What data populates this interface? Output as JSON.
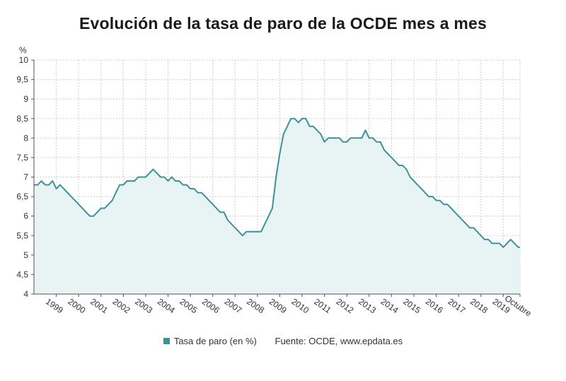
{
  "title": "Evolución de la tasa de paro de la OCDE mes a mes",
  "legend": {
    "series_label": "Tasa de paro (en %)",
    "source": "Fuente: OCDE, www.epdata.es"
  },
  "colors": {
    "line": "#3e9196",
    "fill": "#e8f3f4",
    "grid": "#cfcfcf",
    "axis": "#555555"
  },
  "chart_data": {
    "type": "area",
    "title": "Evolución de la tasa de paro de la OCDE mes a mes",
    "ylabel": "%",
    "xlabel": "",
    "ylim": [
      4,
      10
    ],
    "yticks": [
      4,
      4.5,
      5,
      5.5,
      6,
      6.5,
      7,
      7.5,
      8,
      8.5,
      9,
      9.5,
      10
    ],
    "xticks": [
      "1999",
      "2000",
      "2001",
      "2002",
      "2003",
      "2004",
      "2005",
      "2006",
      "2007",
      "2008",
      "2009",
      "2010",
      "2011",
      "2012",
      "2013",
      "2014",
      "2015",
      "2016",
      "2017",
      "2018",
      "2019",
      "Octubre"
    ],
    "grid": true,
    "legend_position": "bottom",
    "series": [
      {
        "name": "Tasa de paro (en %)",
        "x": [
          "1998-01",
          "1998-03",
          "1998-05",
          "1998-07",
          "1998-09",
          "1998-11",
          "1999-01",
          "1999-03",
          "1999-05",
          "1999-07",
          "1999-09",
          "1999-11",
          "2000-01",
          "2000-03",
          "2000-05",
          "2000-07",
          "2000-09",
          "2000-11",
          "2001-01",
          "2001-03",
          "2001-05",
          "2001-07",
          "2001-09",
          "2001-11",
          "2002-01",
          "2002-03",
          "2002-05",
          "2002-07",
          "2002-09",
          "2002-11",
          "2003-01",
          "2003-03",
          "2003-05",
          "2003-07",
          "2003-09",
          "2003-11",
          "2004-01",
          "2004-03",
          "2004-05",
          "2004-07",
          "2004-09",
          "2004-11",
          "2005-01",
          "2005-03",
          "2005-05",
          "2005-07",
          "2005-09",
          "2005-11",
          "2006-01",
          "2006-03",
          "2006-05",
          "2006-07",
          "2006-09",
          "2006-11",
          "2007-01",
          "2007-03",
          "2007-05",
          "2007-07",
          "2007-09",
          "2007-11",
          "2008-01",
          "2008-03",
          "2008-05",
          "2008-07",
          "2008-09",
          "2008-11",
          "2009-01",
          "2009-03",
          "2009-05",
          "2009-07",
          "2009-09",
          "2009-11",
          "2010-01",
          "2010-03",
          "2010-05",
          "2010-07",
          "2010-09",
          "2010-11",
          "2011-01",
          "2011-03",
          "2011-05",
          "2011-07",
          "2011-09",
          "2011-11",
          "2012-01",
          "2012-03",
          "2012-05",
          "2012-07",
          "2012-09",
          "2012-11",
          "2013-01",
          "2013-03",
          "2013-05",
          "2013-07",
          "2013-09",
          "2013-11",
          "2014-01",
          "2014-03",
          "2014-05",
          "2014-07",
          "2014-09",
          "2014-11",
          "2015-01",
          "2015-03",
          "2015-05",
          "2015-07",
          "2015-09",
          "2015-11",
          "2016-01",
          "2016-03",
          "2016-05",
          "2016-07",
          "2016-09",
          "2016-11",
          "2017-01",
          "2017-03",
          "2017-05",
          "2017-07",
          "2017-09",
          "2017-11",
          "2018-01",
          "2018-03",
          "2018-05",
          "2018-07",
          "2018-09",
          "2018-11",
          "2019-01",
          "2019-03",
          "2019-05",
          "2019-07",
          "2019-09",
          "2019-10"
        ],
        "values": [
          6.8,
          6.8,
          6.9,
          6.8,
          6.8,
          6.9,
          6.7,
          6.8,
          6.7,
          6.6,
          6.5,
          6.4,
          6.3,
          6.2,
          6.1,
          6.0,
          6.0,
          6.1,
          6.2,
          6.2,
          6.3,
          6.4,
          6.6,
          6.8,
          6.8,
          6.9,
          6.9,
          6.9,
          7.0,
          7.0,
          7.0,
          7.1,
          7.2,
          7.1,
          7.0,
          7.0,
          6.9,
          7.0,
          6.9,
          6.9,
          6.8,
          6.8,
          6.7,
          6.7,
          6.6,
          6.6,
          6.5,
          6.4,
          6.3,
          6.2,
          6.1,
          6.1,
          5.9,
          5.8,
          5.7,
          5.6,
          5.5,
          5.6,
          5.6,
          5.6,
          5.6,
          5.6,
          5.8,
          6.0,
          6.2,
          7.0,
          7.6,
          8.1,
          8.3,
          8.5,
          8.5,
          8.4,
          8.5,
          8.5,
          8.3,
          8.3,
          8.2,
          8.1,
          7.9,
          8.0,
          8.0,
          8.0,
          8.0,
          7.9,
          7.9,
          8.0,
          8.0,
          8.0,
          8.0,
          8.2,
          8.0,
          8.0,
          7.9,
          7.9,
          7.7,
          7.6,
          7.5,
          7.4,
          7.3,
          7.3,
          7.2,
          7.0,
          6.9,
          6.8,
          6.7,
          6.6,
          6.5,
          6.5,
          6.4,
          6.4,
          6.3,
          6.3,
          6.2,
          6.1,
          6.0,
          5.9,
          5.8,
          5.7,
          5.7,
          5.6,
          5.5,
          5.4,
          5.4,
          5.3,
          5.3,
          5.3,
          5.2,
          5.3,
          5.4,
          5.3,
          5.2,
          5.2
        ]
      }
    ]
  }
}
